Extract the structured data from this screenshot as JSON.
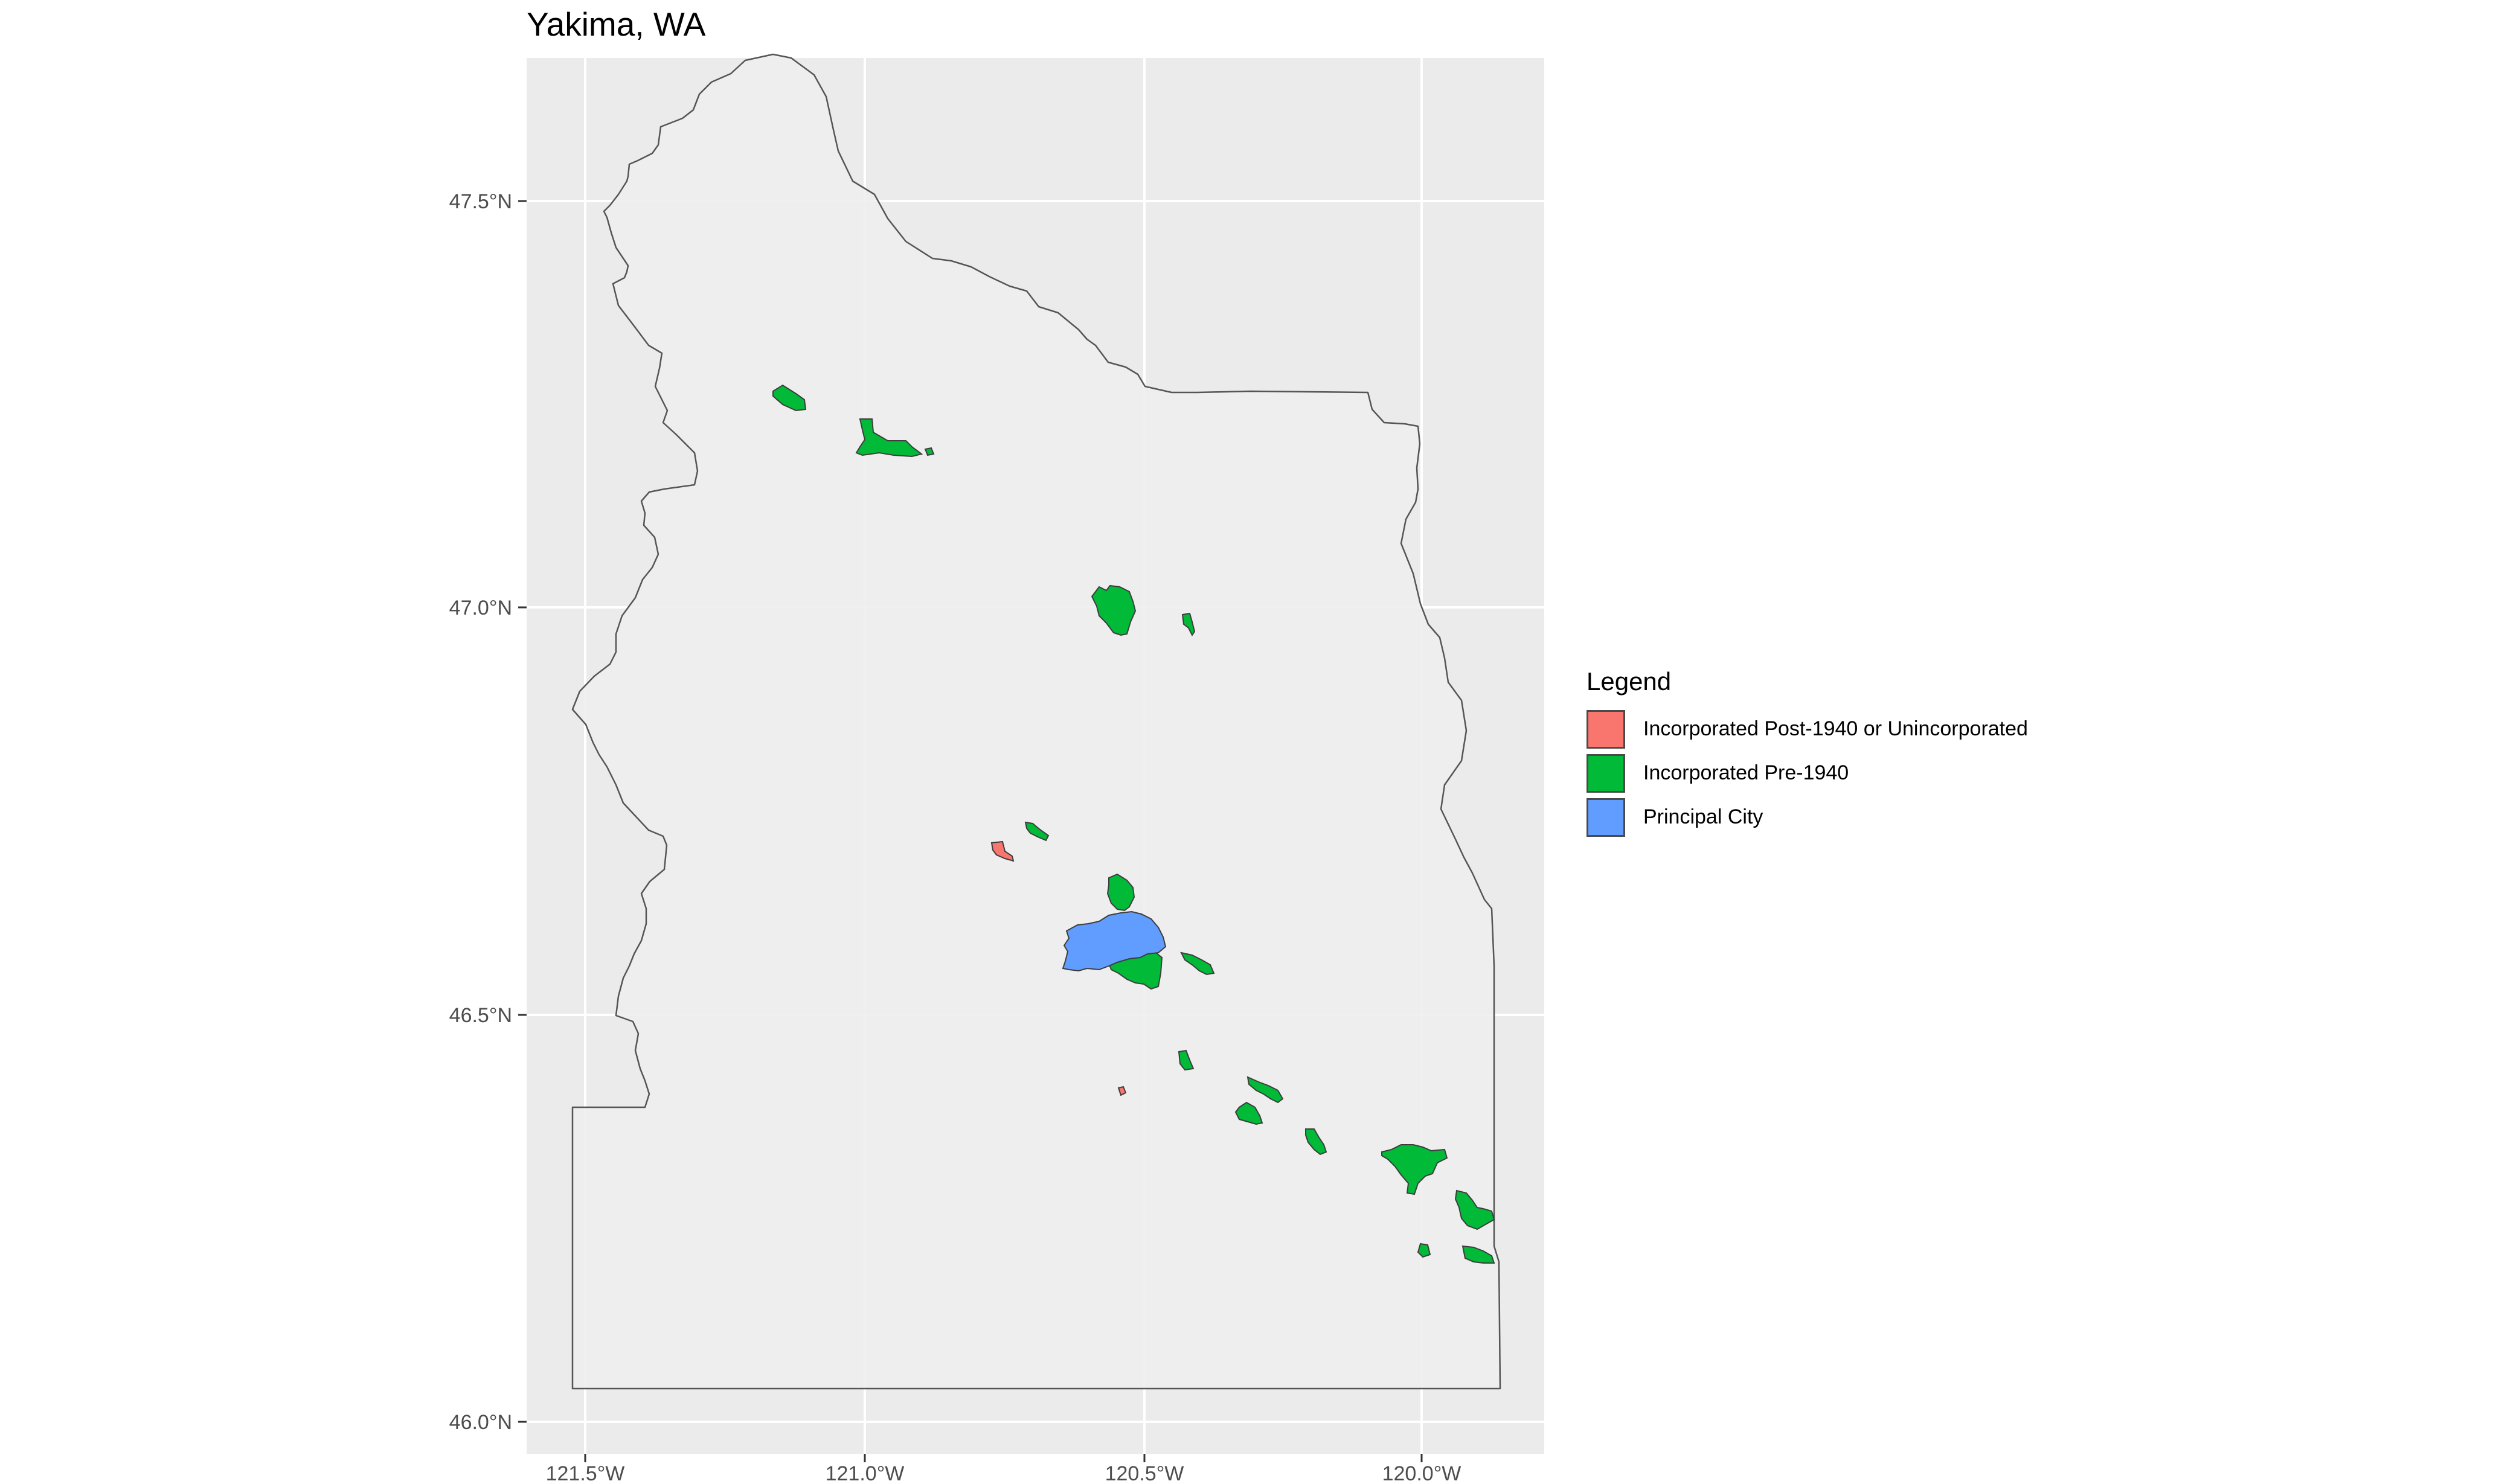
{
  "title": "Yakima, WA",
  "colors": {
    "panel_bg": "#ebebeb",
    "county_fill": "#eeeeee",
    "gridline": "#ffffff",
    "outline": "#555555",
    "category_colors": [
      "#f8766d",
      "#00ba38",
      "#619cff"
    ]
  },
  "axes": {
    "x_ticks": [
      "121.5°W",
      "121.0°W",
      "120.5°W",
      "120.0°W"
    ],
    "y_ticks": [
      "47.5°N",
      "47.0°N",
      "46.5°N",
      "46.0°N"
    ]
  },
  "legend": {
    "title": "Legend",
    "items": [
      {
        "label": "Incorporated Post-1940 or Unincorporated",
        "color": "#f8766d"
      },
      {
        "label": "Incorporated Pre-1940",
        "color": "#00ba38"
      },
      {
        "label": "Principal City",
        "color": "#619cff"
      }
    ]
  }
}
